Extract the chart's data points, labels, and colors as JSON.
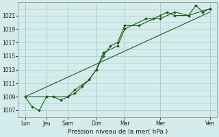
{
  "background_color": "#d4ecec",
  "grid_color": "#b0cccc",
  "line_color": "#1a5c1a",
  "xlabel": "Pression niveau de la mer( hPa )",
  "yticks": [
    1007,
    1009,
    1011,
    1013,
    1015,
    1017,
    1019,
    1021
  ],
  "ylim": [
    1006.0,
    1023.0
  ],
  "xlim": [
    0,
    14
  ],
  "xtick_positions": [
    0.5,
    2.0,
    3.5,
    5.5,
    7.5,
    10.0,
    13.5
  ],
  "xtick_labels": [
    "Lun",
    "Jeu",
    "Sam",
    "Dim",
    "Mar",
    "Mer",
    "Ven"
  ],
  "line_trend": {
    "x": [
      0.5,
      13.5
    ],
    "y": [
      1009.0,
      1021.5
    ]
  },
  "line_jagged": {
    "x": [
      0.5,
      1.0,
      1.5,
      2.0,
      2.5,
      3.0,
      3.5,
      4.0,
      4.5,
      5.0,
      5.5,
      6.0,
      6.5,
      7.0,
      7.5,
      8.5,
      9.5,
      10.0,
      10.5,
      11.0,
      12.0,
      12.5,
      13.0,
      13.5
    ],
    "y": [
      1009.0,
      1007.5,
      1007.0,
      1009.0,
      1009.0,
      1008.5,
      1009.0,
      1009.5,
      1010.5,
      1011.5,
      1013.0,
      1015.0,
      1016.5,
      1017.0,
      1019.5,
      1019.5,
      1020.5,
      1021.0,
      1021.5,
      1021.0,
      1021.0,
      1022.5,
      1021.5,
      1022.0
    ]
  },
  "line_medium": {
    "x": [
      0.5,
      2.0,
      3.5,
      4.0,
      5.0,
      5.5,
      6.0,
      7.0,
      7.5,
      9.0,
      10.0,
      11.0,
      12.0,
      13.5
    ],
    "y": [
      1009.0,
      1009.0,
      1009.0,
      1010.0,
      1011.5,
      1013.0,
      1015.5,
      1016.5,
      1019.0,
      1020.5,
      1020.5,
      1021.5,
      1021.0,
      1022.0
    ]
  }
}
